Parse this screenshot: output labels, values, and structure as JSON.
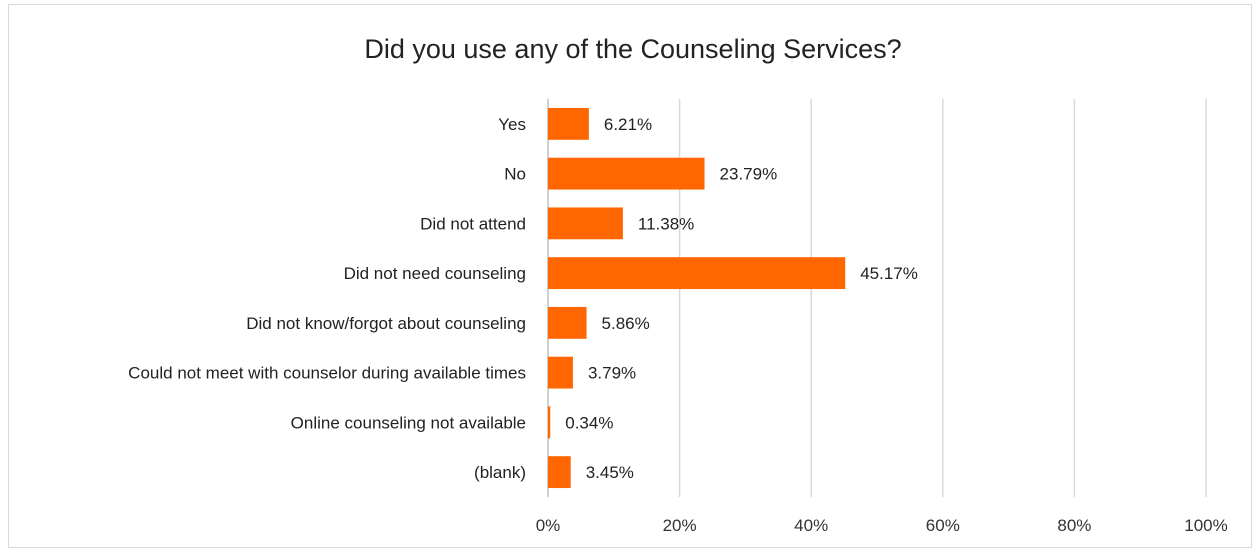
{
  "chart_data": {
    "type": "bar",
    "orientation": "horizontal",
    "title": "Did you use any of the Counseling Services?",
    "categories": [
      "Yes",
      "No",
      "Did not attend",
      "Did not need counseling",
      "Did not know/forgot about counseling",
      "Could not meet with counselor during available times",
      "Online counseling not available",
      "(blank)"
    ],
    "values": [
      6.21,
      23.79,
      11.38,
      45.17,
      5.86,
      3.79,
      0.34,
      3.45
    ],
    "value_labels": [
      "6.21%",
      "23.79%",
      "11.38%",
      "45.17%",
      "5.86%",
      "3.79%",
      "0.34%",
      "3.45%"
    ],
    "xlim": [
      0,
      100
    ],
    "xticks": [
      "0%",
      "20%",
      "40%",
      "60%",
      "80%",
      "100%"
    ],
    "grid": true,
    "bar_color": "#FF6600"
  }
}
